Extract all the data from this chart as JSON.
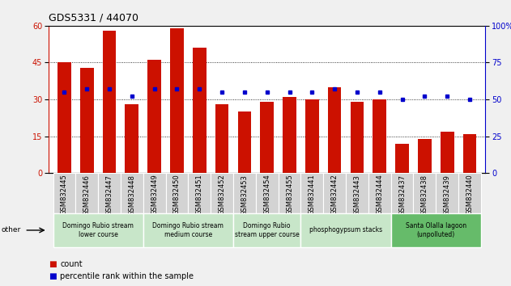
{
  "title": "GDS5331 / 44070",
  "samples": [
    "GSM832445",
    "GSM832446",
    "GSM832447",
    "GSM832448",
    "GSM832449",
    "GSM832450",
    "GSM832451",
    "GSM832452",
    "GSM832453",
    "GSM832454",
    "GSM832455",
    "GSM832441",
    "GSM832442",
    "GSM832443",
    "GSM832444",
    "GSM832437",
    "GSM832438",
    "GSM832439",
    "GSM832440"
  ],
  "counts": [
    45,
    43,
    58,
    28,
    46,
    59,
    51,
    28,
    25,
    29,
    31,
    30,
    35,
    29,
    30,
    12,
    14,
    17,
    16
  ],
  "percentiles": [
    55,
    57,
    57,
    52,
    57,
    57,
    57,
    55,
    55,
    55,
    55,
    55,
    57,
    55,
    55,
    50,
    52,
    52,
    50
  ],
  "bar_color": "#cc1100",
  "dot_color": "#0000cc",
  "ylim_left": [
    0,
    60
  ],
  "ylim_right": [
    0,
    100
  ],
  "yticks_left": [
    0,
    15,
    30,
    45,
    60
  ],
  "yticks_right": [
    0,
    25,
    50,
    75,
    100
  ],
  "groups": [
    {
      "label": "Domingo Rubio stream\nlower course",
      "start": 0,
      "end": 4,
      "color": "#c8e6c9"
    },
    {
      "label": "Domingo Rubio stream\nmedium course",
      "start": 4,
      "end": 8,
      "color": "#c8e6c9"
    },
    {
      "label": "Domingo Rubio\nstream upper course",
      "start": 8,
      "end": 11,
      "color": "#c8e6c9"
    },
    {
      "label": "phosphogypsum stacks",
      "start": 11,
      "end": 15,
      "color": "#c8e6c9"
    },
    {
      "label": "Santa Olalla lagoon\n(unpolluted)",
      "start": 15,
      "end": 19,
      "color": "#66bb6a"
    }
  ],
  "legend_count_label": "count",
  "legend_pct_label": "percentile rank within the sample",
  "bg_color": "#f0f0f0",
  "plot_bg": "#ffffff",
  "title_fontsize": 9,
  "tick_fontsize": 6,
  "group_fontsize": 5.5,
  "legend_fontsize": 7,
  "bar_width": 0.6
}
